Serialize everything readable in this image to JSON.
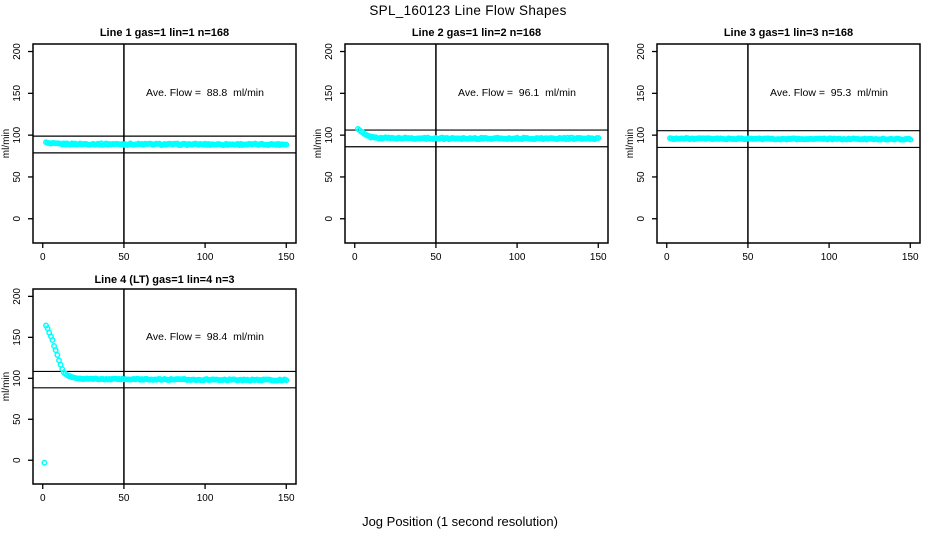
{
  "figure": {
    "title": "SPL_160123  Line Flow Shapes",
    "xlabel": "Jog Position (1 second resolution)"
  },
  "colors": {
    "points": "#00FFFF",
    "axis": "#000000",
    "text": "#000000",
    "background": "#FFFFFF"
  },
  "chart_data": [
    {
      "type": "scatter",
      "title": "Line 1 gas=1 lin=1 n=168",
      "annotation": "Ave. Flow =  88.8  ml/min",
      "ave_flow_ml_min": 88.8,
      "gas": 1,
      "lin": 1,
      "n": 168,
      "ylabel": "ml/min",
      "xticks": [
        0,
        50,
        100,
        150
      ],
      "yticks": [
        0,
        50,
        100,
        150,
        200
      ],
      "xlim": [
        -6,
        156
      ],
      "ylim": [
        -29,
        209
      ],
      "grid": false,
      "vline_x": 50,
      "hlines": [
        98.8,
        78.8
      ],
      "x_range": [
        2,
        150
      ],
      "profile": [
        [
          2,
          91
        ],
        [
          4,
          90
        ],
        [
          10,
          89.5
        ],
        [
          80,
          89
        ],
        [
          150,
          89
        ]
      ],
      "noise": 0.9,
      "extra_points": []
    },
    {
      "type": "scatter",
      "title": "Line 2 gas=1 lin=2 n=168",
      "annotation": "Ave. Flow =  96.1  ml/min",
      "ave_flow_ml_min": 96.1,
      "gas": 1,
      "lin": 2,
      "n": 168,
      "ylabel": "ml/min",
      "xticks": [
        0,
        50,
        100,
        150
      ],
      "yticks": [
        0,
        50,
        100,
        150,
        200
      ],
      "xlim": [
        -6,
        156
      ],
      "ylim": [
        -29,
        209
      ],
      "grid": false,
      "vline_x": 50,
      "hlines": [
        106.1,
        86.1
      ],
      "x_range": [
        2,
        150
      ],
      "profile": [
        [
          2,
          107
        ],
        [
          3,
          105.5
        ],
        [
          4,
          104
        ],
        [
          5,
          102.5
        ],
        [
          6,
          101
        ],
        [
          7,
          100
        ],
        [
          8,
          99
        ],
        [
          9,
          98.3
        ],
        [
          10,
          97.8
        ],
        [
          12,
          97.2
        ],
        [
          15,
          96.8
        ],
        [
          20,
          96.5
        ],
        [
          40,
          96.2
        ],
        [
          150,
          96
        ]
      ],
      "noise": 0.9,
      "extra_points": []
    },
    {
      "type": "scatter",
      "title": "Line 3 gas=1 lin=3 n=168",
      "annotation": "Ave. Flow =  95.3  ml/min",
      "ave_flow_ml_min": 95.3,
      "gas": 1,
      "lin": 3,
      "n": 168,
      "ylabel": "ml/min",
      "xticks": [
        0,
        50,
        100,
        150
      ],
      "yticks": [
        0,
        50,
        100,
        150,
        200
      ],
      "xlim": [
        -6,
        156
      ],
      "ylim": [
        -29,
        209
      ],
      "grid": false,
      "vline_x": 50,
      "hlines": [
        105.3,
        85.3
      ],
      "x_range": [
        2,
        150
      ],
      "profile": [
        [
          2,
          96
        ],
        [
          20,
          95.7
        ],
        [
          150,
          95.2
        ]
      ],
      "noise": 0.7,
      "extra_points": []
    },
    {
      "type": "scatter",
      "title": "Line 4 (LT) gas=1 lin=4 n=3",
      "annotation": "Ave. Flow =  98.4  ml/min",
      "ave_flow_ml_min": 98.4,
      "gas": 1,
      "lin": 4,
      "n": 3,
      "ylabel": "ml/min",
      "xticks": [
        0,
        50,
        100,
        150
      ],
      "yticks": [
        0,
        50,
        100,
        150,
        200
      ],
      "xlim": [
        -6,
        156
      ],
      "ylim": [
        -29,
        209
      ],
      "grid": false,
      "vline_x": 50,
      "hlines": [
        108.4,
        88.4
      ],
      "x_range": [
        2,
        150
      ],
      "profile": [
        [
          2,
          165
        ],
        [
          3,
          161
        ],
        [
          4,
          156
        ],
        [
          5,
          151
        ],
        [
          6,
          146
        ],
        [
          7,
          140
        ],
        [
          8,
          134
        ],
        [
          9,
          128
        ],
        [
          10,
          122
        ],
        [
          11,
          116
        ],
        [
          12,
          111
        ],
        [
          13,
          107.5
        ],
        [
          14,
          105
        ],
        [
          15,
          103.5
        ],
        [
          16,
          102.5
        ],
        [
          18,
          101.5
        ],
        [
          20,
          100.5
        ],
        [
          23,
          100
        ],
        [
          27,
          99.5
        ],
        [
          35,
          99
        ],
        [
          60,
          98.8
        ],
        [
          100,
          98.3
        ],
        [
          150,
          97.8
        ]
      ],
      "noise": 0.7,
      "extra_points": [
        [
          1,
          -3
        ]
      ]
    }
  ]
}
